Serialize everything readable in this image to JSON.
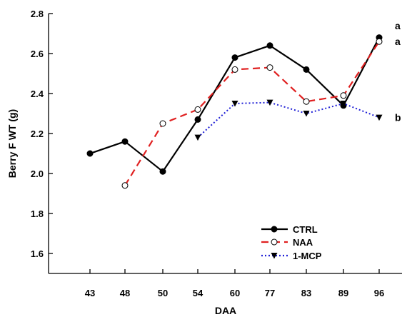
{
  "chart_data": {
    "type": "line",
    "xlabel": "DAA",
    "ylabel": "Berry F WT (g)",
    "ylim": [
      1.5,
      2.8
    ],
    "yticks": [
      "1.6",
      "1.8",
      "2.0",
      "2.2",
      "2.4",
      "2.6",
      "2.8"
    ],
    "categories": [
      "43",
      "48",
      "50",
      "54",
      "60",
      "77",
      "83",
      "89",
      "96"
    ],
    "grid": false,
    "legend_position": "bottom-right",
    "series": [
      {
        "name": "CTRL",
        "color": "#000000",
        "line_style": "solid",
        "marker": "filled-circle",
        "values": [
          2.1,
          2.16,
          2.01,
          2.27,
          2.58,
          2.64,
          2.52,
          2.34,
          2.68
        ]
      },
      {
        "name": "NAA",
        "color": "#e02020",
        "line_style": "dashed",
        "marker": "open-circle",
        "values": [
          null,
          1.94,
          2.25,
          2.32,
          2.52,
          2.53,
          2.36,
          2.39,
          2.66
        ]
      },
      {
        "name": "1-MCP",
        "color": "#1f1fd6",
        "line_style": "dotted",
        "marker": "filled-triangle-down",
        "values": [
          null,
          null,
          null,
          2.18,
          2.35,
          2.355,
          2.3,
          2.35,
          2.28
        ]
      }
    ],
    "annotations": [
      {
        "text": "a",
        "x": "96",
        "y": 2.74
      },
      {
        "text": "a",
        "x": "96",
        "y": 2.66
      },
      {
        "text": "b",
        "x": "96",
        "y": 2.28
      }
    ]
  }
}
